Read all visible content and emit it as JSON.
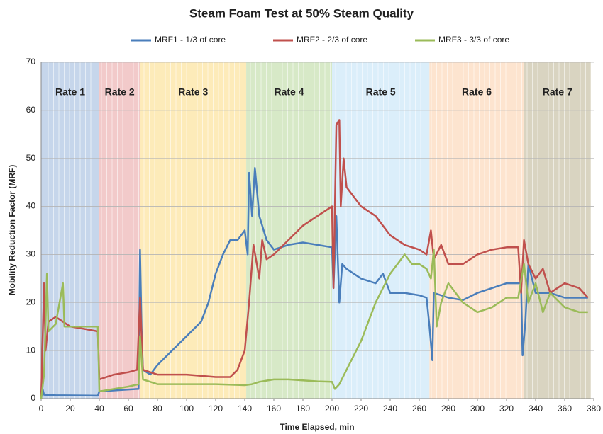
{
  "chart_data": {
    "type": "line",
    "title": "Steam Foam Test at 50% Steam Quality",
    "x_label": "Time Elapsed, min",
    "y_label": "Mobility Reduction Factor (MRF)",
    "xlim": [
      0,
      380
    ],
    "ylim": [
      0,
      70
    ],
    "xticks": [
      0,
      20,
      40,
      60,
      80,
      100,
      120,
      140,
      160,
      180,
      200,
      220,
      240,
      260,
      280,
      300,
      320,
      340,
      360,
      380
    ],
    "yticks": [
      0,
      10,
      20,
      30,
      40,
      50,
      60,
      70
    ],
    "grid": true,
    "legend": "top",
    "regions": [
      {
        "label": "Rate 1",
        "start": 0,
        "end": 40,
        "color": "#c6d6eb"
      },
      {
        "label": "Rate 2",
        "start": 40,
        "end": 68,
        "color": "#f2caca"
      },
      {
        "label": "Rate 3",
        "start": 68,
        "end": 141,
        "color": "#fdebb9"
      },
      {
        "label": "Rate 4",
        "start": 141,
        "end": 200,
        "color": "#d7e9c7"
      },
      {
        "label": "Rate 5",
        "start": 200,
        "end": 267,
        "color": "#dbeefa"
      },
      {
        "label": "Rate 6",
        "start": 267,
        "end": 332,
        "color": "#fde4cf"
      },
      {
        "label": "Rate 7",
        "start": 332,
        "end": 378,
        "color": "#d9d4c1"
      }
    ],
    "series": [
      {
        "name": "MRF1 - 1/3 of core",
        "color": "#4a7ebb",
        "x": [
          0,
          1,
          2,
          10,
          39,
          40,
          66,
          67,
          68,
          69,
          70,
          75,
          80,
          90,
          100,
          110,
          115,
          120,
          125,
          130,
          135,
          140,
          142,
          143,
          145,
          147,
          150,
          155,
          160,
          170,
          180,
          190,
          200,
          201,
          203,
          205,
          207,
          210,
          220,
          230,
          235,
          240,
          250,
          260,
          265,
          267,
          269,
          270,
          280,
          290,
          300,
          310,
          320,
          330,
          331,
          333,
          335,
          340,
          350,
          360,
          370,
          376
        ],
        "values": [
          0,
          2,
          0.8,
          0.7,
          0.6,
          1.5,
          2,
          2,
          31,
          15,
          6,
          5,
          7,
          10,
          13,
          16,
          20,
          26,
          30,
          33,
          33,
          35,
          30,
          47,
          38,
          48,
          38,
          33,
          31,
          32,
          32.5,
          32,
          31.5,
          23,
          38,
          20,
          28,
          27,
          25,
          24,
          26,
          22,
          22,
          21.5,
          21,
          15,
          8,
          22,
          21,
          20.5,
          22,
          23,
          24,
          24,
          9,
          16,
          28,
          22,
          22,
          21,
          21,
          21
        ]
      },
      {
        "name": "MRF2 - 2/3 of core",
        "color": "#c0504d",
        "x": [
          0,
          2,
          3,
          5,
          10,
          20,
          30,
          39,
          40,
          50,
          60,
          66,
          68,
          70,
          80,
          100,
          120,
          130,
          135,
          140,
          143,
          146,
          150,
          152,
          155,
          160,
          170,
          180,
          190,
          200,
          201,
          203,
          205,
          206,
          208,
          210,
          220,
          230,
          240,
          250,
          260,
          265,
          268,
          270,
          275,
          280,
          290,
          300,
          310,
          320,
          328,
          330,
          332,
          335,
          340,
          345,
          350,
          360,
          370,
          376
        ],
        "values": [
          0,
          24,
          10,
          16,
          17,
          15,
          14.5,
          14,
          4,
          5,
          5.5,
          6,
          21,
          6,
          5,
          5,
          4.5,
          4.5,
          6,
          10,
          20,
          32,
          25,
          33,
          29,
          30,
          33,
          36,
          38,
          40,
          23,
          57,
          58,
          40,
          50,
          44,
          40,
          38,
          34,
          32,
          31,
          30,
          35,
          29,
          32,
          28,
          28,
          30,
          31,
          31.5,
          31.5,
          22,
          33,
          28,
          25,
          27,
          22,
          24,
          23,
          21
        ]
      },
      {
        "name": "MRF3 - 3/3 of core",
        "color": "#9bbb59",
        "x": [
          0,
          2,
          4,
          5,
          10,
          15,
          16,
          20,
          30,
          39,
          40,
          50,
          60,
          67,
          68,
          70,
          80,
          100,
          120,
          140,
          145,
          150,
          160,
          170,
          180,
          190,
          200,
          202,
          205,
          210,
          220,
          230,
          240,
          245,
          250,
          255,
          260,
          265,
          268,
          270,
          272,
          275,
          280,
          290,
          300,
          310,
          320,
          328,
          332,
          335,
          340,
          345,
          350,
          360,
          370,
          376
        ],
        "values": [
          0,
          5,
          26,
          14,
          15.5,
          24,
          15,
          15,
          15,
          15,
          1.5,
          2,
          2.5,
          3,
          13,
          4,
          3,
          3,
          3,
          2.8,
          3,
          3.5,
          4,
          4,
          3.8,
          3.6,
          3.5,
          2,
          3,
          6,
          12,
          20,
          26,
          28,
          30,
          28,
          28,
          27,
          25,
          31,
          15,
          20,
          24,
          20,
          18,
          19,
          21,
          21,
          28,
          20,
          24,
          18,
          22,
          19,
          18,
          18
        ]
      }
    ]
  }
}
